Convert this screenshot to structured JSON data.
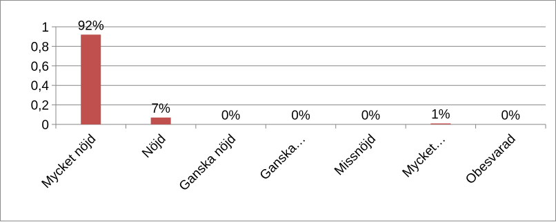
{
  "chart_data": {
    "type": "bar",
    "title": "",
    "xlabel": "",
    "ylabel": "",
    "categories": [
      "Mycket nöjd",
      "Nöjd",
      "Ganska nöjd",
      "Ganska…",
      "Missnöjd",
      "Mycket…",
      "Obesvarad"
    ],
    "values": [
      0.92,
      0.07,
      0,
      0,
      0,
      0.01,
      0
    ],
    "data_labels": [
      "92%",
      "7%",
      "0%",
      "0%",
      "0%",
      "1%",
      "0%"
    ],
    "ylim": [
      0,
      1
    ],
    "yticks": [
      0,
      0.2,
      0.4,
      0.6,
      0.8,
      1
    ],
    "ytick_labels": [
      "0",
      "0,2",
      "0,4",
      "0,6",
      "0,8",
      "1"
    ],
    "grid": true,
    "legend": "none",
    "bar_color": "#c0504d",
    "gridline_color": "#868686"
  }
}
